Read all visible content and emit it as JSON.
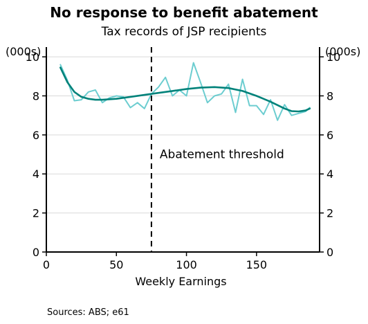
{
  "chart_data": {
    "type": "line",
    "title": "No response to benefit abatement",
    "subtitle": "Tax records of JSP recipients",
    "xlabel": "Weekly Earnings",
    "ylabel_left": "(000s)",
    "ylabel_right": "(000s)",
    "xlim": [
      0,
      195
    ],
    "ylim": [
      0,
      10.5
    ],
    "xticks": [
      0,
      50,
      100,
      150
    ],
    "yticks": [
      0,
      2,
      4,
      6,
      8,
      10
    ],
    "grid": true,
    "legend": "none",
    "series": [
      {
        "color": "#6CCDD0",
        "x": [
          10,
          15,
          20,
          25,
          30,
          35,
          40,
          45,
          50,
          55,
          60,
          65,
          70,
          75,
          80,
          85,
          90,
          95,
          100,
          105,
          110,
          115,
          120,
          125,
          130,
          135,
          140,
          145,
          150,
          155,
          160,
          165,
          170,
          175,
          180,
          185,
          188
        ],
        "y": [
          9.6,
          8.8,
          7.75,
          7.8,
          8.2,
          8.3,
          7.65,
          7.9,
          8.0,
          7.95,
          7.4,
          7.65,
          7.35,
          8.1,
          8.45,
          8.95,
          8.0,
          8.3,
          8.0,
          9.7,
          8.7,
          7.65,
          8.0,
          8.1,
          8.6,
          7.15,
          8.85,
          7.5,
          7.5,
          7.05,
          7.8,
          6.75,
          7.55,
          7.0,
          7.1,
          7.2,
          7.4
        ]
      },
      {
        "color": "#00827A",
        "x": [
          10,
          15,
          20,
          25,
          30,
          35,
          40,
          50,
          60,
          70,
          80,
          90,
          100,
          110,
          120,
          130,
          140,
          150,
          160,
          170,
          175,
          180,
          185,
          188
        ],
        "y": [
          9.45,
          8.7,
          8.2,
          7.95,
          7.85,
          7.8,
          7.8,
          7.85,
          7.95,
          8.05,
          8.15,
          8.25,
          8.35,
          8.42,
          8.45,
          8.4,
          8.25,
          8.0,
          7.7,
          7.35,
          7.22,
          7.2,
          7.25,
          7.35
        ]
      }
    ],
    "threshold_x": 75,
    "annotation": "Abatement threshold",
    "source": "Sources: ABS; e61"
  }
}
